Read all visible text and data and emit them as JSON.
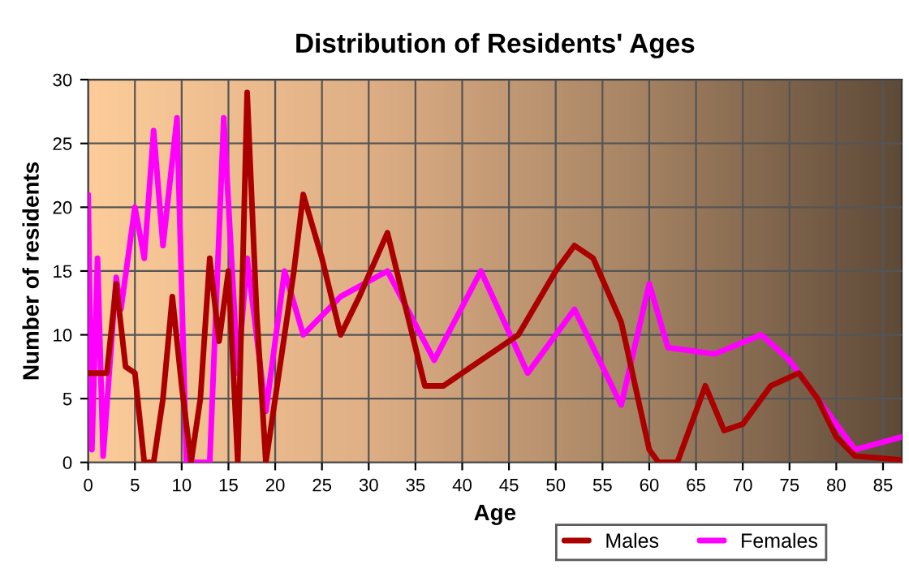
{
  "chart_data": {
    "type": "line",
    "title": "Distribution of Residents' Ages",
    "xlabel": "Age",
    "ylabel": "Number of residents",
    "xlim": [
      0,
      87
    ],
    "ylim": [
      0,
      30
    ],
    "xticks": [
      0,
      5,
      10,
      15,
      20,
      25,
      30,
      35,
      40,
      45,
      50,
      55,
      60,
      65,
      70,
      75,
      80,
      85
    ],
    "yticks": [
      0,
      5,
      10,
      15,
      20,
      25,
      30
    ],
    "grid": true,
    "legend": "bottom right",
    "line_style": "solid",
    "series": [
      {
        "name": "Males",
        "color": "#aa0000",
        "x": [
          0,
          1,
          2,
          3,
          4,
          5,
          6,
          7,
          8,
          9,
          10,
          11,
          12,
          13,
          14,
          15,
          16,
          17,
          18,
          19,
          20,
          22,
          23,
          25,
          27,
          29,
          32,
          34,
          36,
          38,
          42,
          46,
          50,
          52,
          54,
          57,
          60,
          61,
          63,
          66,
          68,
          70,
          73,
          76,
          78,
          80,
          82,
          87
        ],
        "values": [
          7,
          7,
          7,
          14,
          7.5,
          7,
          0,
          0,
          5,
          13,
          6,
          0,
          5,
          16,
          9.5,
          15,
          0,
          29,
          12,
          0,
          5,
          15,
          21,
          16,
          10,
          13,
          18,
          12,
          6,
          6,
          8,
          10,
          15,
          17,
          16,
          11,
          1,
          0,
          0,
          6,
          2.5,
          3,
          6,
          7,
          5,
          2,
          0.5,
          0.2
        ]
      },
      {
        "name": "Females",
        "color": "#ff00ff",
        "x": [
          0,
          0.4,
          1,
          1.6,
          3,
          3.5,
          5,
          6,
          7,
          8,
          9.5,
          10.5,
          13,
          14.5,
          16,
          17,
          19,
          21,
          23,
          27,
          32,
          37,
          42,
          47,
          52,
          57,
          60,
          62,
          67,
          72,
          75,
          78,
          82,
          87
        ],
        "values": [
          21,
          1,
          16,
          0.5,
          14.5,
          12,
          20,
          16,
          26,
          17,
          27,
          0,
          0,
          27,
          7,
          16,
          4,
          15,
          10,
          13,
          15,
          8,
          15,
          7,
          12,
          4.5,
          14,
          9,
          8.5,
          10,
          8,
          5,
          1,
          2
        ]
      }
    ]
  }
}
